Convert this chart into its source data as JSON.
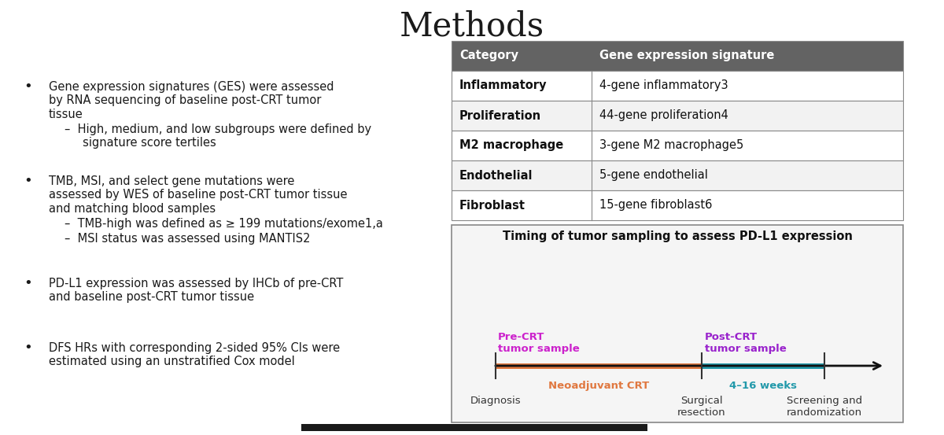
{
  "title": "Methods",
  "background_color": "#ffffff",
  "bullet_points": [
    {
      "text": "Gene expression signatures (GES) were assessed\nby RNA sequencing of baseline post-CRT tumor\ntissue",
      "sub": [
        "High, medium, and low subgroups were defined by\nsignature score tertiles"
      ]
    },
    {
      "text": "TMB, MSI, and select gene mutations were\nassessed by WES of baseline post-CRT tumor tissue\nand matching blood samples",
      "sub": [
        "TMB-high was defined as ≥ 199 mutations/exome1,a",
        "MSI status was assessed using MANTIS2"
      ]
    },
    {
      "text": "PD-L1 expression was assessed by IHCb of pre-CRT\nand baseline post-CRT tumor tissue",
      "sub": []
    },
    {
      "text": "DFS HRs with corresponding 2-sided 95% CIs were\nestimated using an unstratified Cox model",
      "sub": []
    }
  ],
  "table_header_bg": "#636363",
  "table_header_color": "#ffffff",
  "table_row_bg1": "#ffffff",
  "table_row_bg2": "#f2f2f2",
  "table_cats_display": [
    "Inflammatory",
    "Proliferation",
    "M2 macrophage",
    "Endothelial",
    "Fibroblast"
  ],
  "table_signatures": [
    "4-gene inflammatory3",
    "44-gene proliferation4",
    "3-gene M2 macrophage5",
    "5-gene endothelial",
    "15-gene fibroblast6"
  ],
  "timeline_title": "Timing of tumor sampling to assess PD-L1 expression",
  "pre_crt_color": "#cc22cc",
  "post_crt_color": "#9922cc",
  "neoadj_color": "#e07840",
  "weeks_color": "#2299aa",
  "border_color": "#888888"
}
